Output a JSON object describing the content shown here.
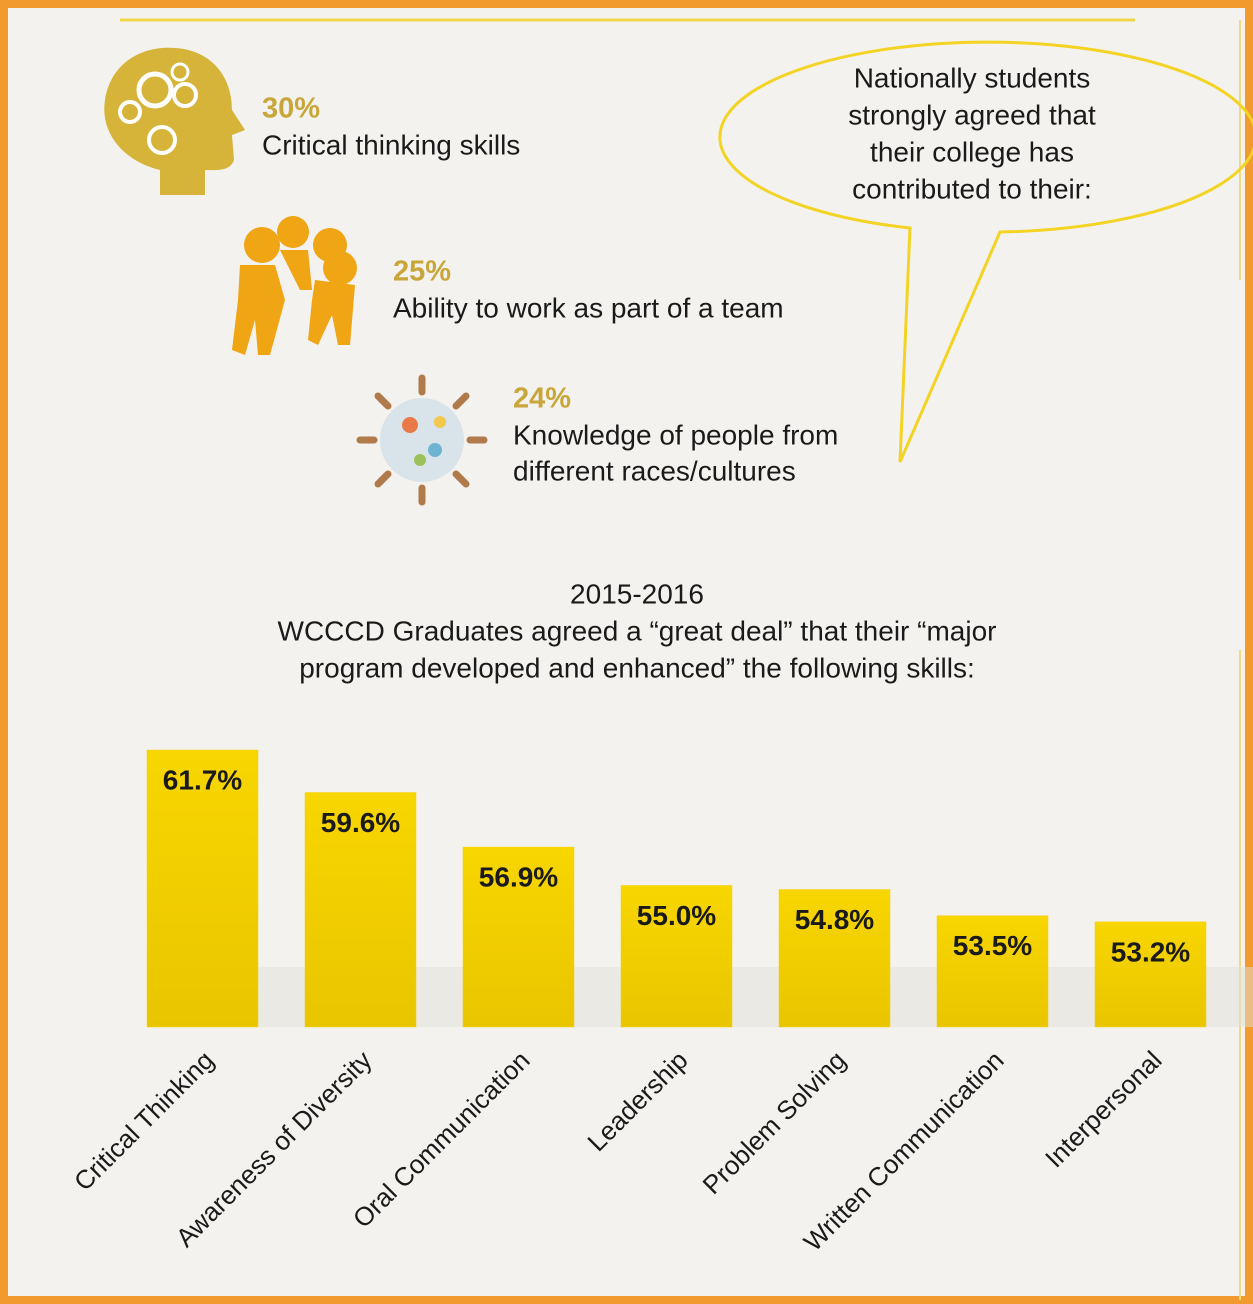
{
  "highlights": [
    {
      "percent": "30%",
      "label": [
        "Critical thinking skills"
      ]
    },
    {
      "percent": "25%",
      "label": [
        "Ability to work as part of a team"
      ]
    },
    {
      "percent": "24%",
      "label": [
        "Knowledge of people from",
        "different races/cultures"
      ]
    }
  ],
  "callout": [
    "Nationally students",
    "strongly agreed that",
    "their college has",
    "contributed to their:"
  ],
  "chart_data": {
    "type": "bar",
    "title": "2015-2016",
    "subtitle": [
      "WCCCD Graduates agreed a “great deal” that their “major",
      "program developed and enhanced” the following skills:"
    ],
    "categories": [
      "Critical Thinking",
      "Awareness of Diversity",
      "Oral Communication",
      "Leadership",
      "Problem Solving",
      "Written Communication",
      "Interpersonal"
    ],
    "values": [
      61.7,
      59.6,
      56.9,
      55.0,
      54.8,
      53.5,
      53.2
    ],
    "value_labels": [
      "61.7%",
      "59.6%",
      "56.9%",
      "55.0%",
      "54.8%",
      "53.5%",
      "53.2%"
    ],
    "color": "#f5d000",
    "ylim": [
      48,
      62
    ]
  }
}
